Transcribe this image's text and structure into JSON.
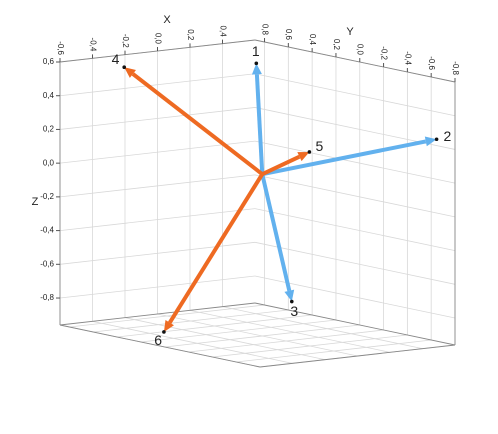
{
  "chart_data": {
    "type": "vector3d",
    "x_label": "X",
    "y_label": "Y",
    "z_label": "Z",
    "xlim": [
      -0.6,
      0.6
    ],
    "ylim": [
      0.88,
      -0.8
    ],
    "zlim": [
      -0.96,
      0.6
    ],
    "xticks": [
      {
        "value": -0.6,
        "label": "-0,6"
      },
      {
        "value": -0.4,
        "label": "-0,4"
      },
      {
        "value": -0.2,
        "label": "-0,2"
      },
      {
        "value": 0,
        "label": "0,0"
      },
      {
        "value": 0.2,
        "label": "0,2"
      },
      {
        "value": 0.4,
        "label": "0,4"
      }
    ],
    "yticks": [
      {
        "value": 0.8,
        "label": "0,8"
      },
      {
        "value": 0.6,
        "label": "0,6"
      },
      {
        "value": 0.4,
        "label": "0,4"
      },
      {
        "value": 0.2,
        "label": "0,2"
      },
      {
        "value": 0,
        "label": "0,0"
      },
      {
        "value": -0.2,
        "label": "-0,2"
      },
      {
        "value": -0.4,
        "label": "-0,4"
      },
      {
        "value": -0.6,
        "label": "-0,6"
      },
      {
        "value": -0.8,
        "label": "-0,8"
      }
    ],
    "zticks": [
      {
        "value": 0.6,
        "label": "0,6"
      },
      {
        "value": 0.4,
        "label": "0,4"
      },
      {
        "value": 0.2,
        "label": "0,2"
      },
      {
        "value": 0,
        "label": "0,0"
      },
      {
        "value": -0.2,
        "label": "-0,2"
      },
      {
        "value": -0.4,
        "label": "-0,4"
      },
      {
        "value": -0.6,
        "label": "-0,6"
      },
      {
        "value": -0.8,
        "label": "-0,8"
      }
    ],
    "grid": true,
    "vectors": [
      {
        "label": "1",
        "color": "#62b1ee",
        "x": 0,
        "y": 0.05,
        "z": 0.65
      },
      {
        "label": "2",
        "color": "#62b1ee",
        "x": 0.56,
        "y": -0.7,
        "z": 0.25
      },
      {
        "label": "3",
        "color": "#62b1ee",
        "x": -0.06,
        "y": -0.33,
        "z": -0.7
      },
      {
        "label": "4",
        "color": "#ee6a22",
        "x": -0.41,
        "y": 0.6,
        "z": 0.59
      },
      {
        "label": "5",
        "color": "#ee6a22",
        "x": 0.29,
        "y": 0,
        "z": 0.1
      },
      {
        "label": "6",
        "color": "#ee6a22",
        "x": -0.51,
        "y": 0.13,
        "z": -0.9
      }
    ]
  }
}
